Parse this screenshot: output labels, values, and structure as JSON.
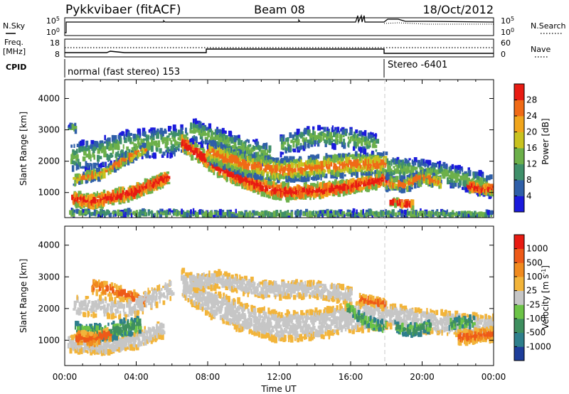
{
  "header": {
    "station": "Pykkvibaer (fitACF)",
    "beam": "Beam 08",
    "date": "18/Oct/2012"
  },
  "nsky_panel": {
    "left_label": "N.Sky",
    "right_label": "N.Search",
    "left_ticks": [
      "10^5",
      "10^0"
    ],
    "right_ticks": [
      "10^5",
      "10^0"
    ]
  },
  "freq_panel": {
    "left_label_1": "Freq.",
    "left_label_2": "[MHz]",
    "right_label": "Nave",
    "left_ticks": [
      "18",
      "8"
    ],
    "right_ticks": [
      "60",
      "0"
    ]
  },
  "cpid": {
    "label": "CPID",
    "segments": [
      {
        "text": "normal (fast stereo) 153",
        "t_start": 0,
        "t_end": 18
      },
      {
        "text": "Stereo -6401",
        "t_start": 18,
        "t_end": 24
      }
    ]
  },
  "x_axis": {
    "label": "Time UT",
    "ticks": [
      "00:00",
      "04:00",
      "08:00",
      "12:00",
      "16:00",
      "20:00",
      "00:00"
    ],
    "range_hours": [
      0,
      24
    ]
  },
  "chart_data": [
    {
      "type": "heatmap",
      "name": "power",
      "ylabel": "Slant Range [km]",
      "yticks": [
        "1000",
        "2000",
        "3000",
        "4000"
      ],
      "ylim": [
        200,
        4600
      ],
      "colorbar": {
        "label": "Power [dB]",
        "ticks": [
          "4",
          "8",
          "12",
          "16",
          "20",
          "24",
          "28"
        ],
        "colors": [
          "#1a1adc",
          "#2f5fa8",
          "#3f8f6a",
          "#6cb04a",
          "#c9c21f",
          "#f0a51c",
          "#f06a16",
          "#e81b12"
        ]
      },
      "regions": [
        {
          "t": [
            0.2,
            6.0
          ],
          "r": [
            550,
            1800
          ],
          "value": 24
        },
        {
          "t": [
            6.0,
            11.0
          ],
          "r": [
            800,
            2800
          ],
          "value": 16
        },
        {
          "t": [
            11.0,
            18.0
          ],
          "r": [
            800,
            2400
          ],
          "value": 20
        },
        {
          "t": [
            18.0,
            24.0
          ],
          "r": [
            600,
            2200
          ],
          "value": 12
        }
      ]
    },
    {
      "type": "heatmap",
      "name": "velocity",
      "ylabel": "Slant Range [km]",
      "yticks": [
        "1000",
        "2000",
        "3000",
        "4000"
      ],
      "ylim": [
        200,
        4600
      ],
      "colorbar": {
        "label": "Velocity [m s^-1]",
        "ticks": [
          "1000",
          "500",
          "100",
          "25",
          "-25",
          "-100",
          "-500",
          "-1000"
        ],
        "colors": [
          "#1d3d9a",
          "#2e7f8c",
          "#3e8f5f",
          "#6cc347",
          "#c6c6c6",
          "#f2b43a",
          "#f08a1e",
          "#ee5a18",
          "#e81b12"
        ]
      },
      "regions": [
        {
          "t": [
            0.5,
            6.0
          ],
          "r": [
            700,
            2800
          ],
          "value": -100
        },
        {
          "t": [
            6.0,
            18.0
          ],
          "r": [
            800,
            3000
          ],
          "value": 0
        },
        {
          "t": [
            18.0,
            24.0
          ],
          "r": [
            700,
            2200
          ],
          "value": 0
        }
      ]
    }
  ]
}
